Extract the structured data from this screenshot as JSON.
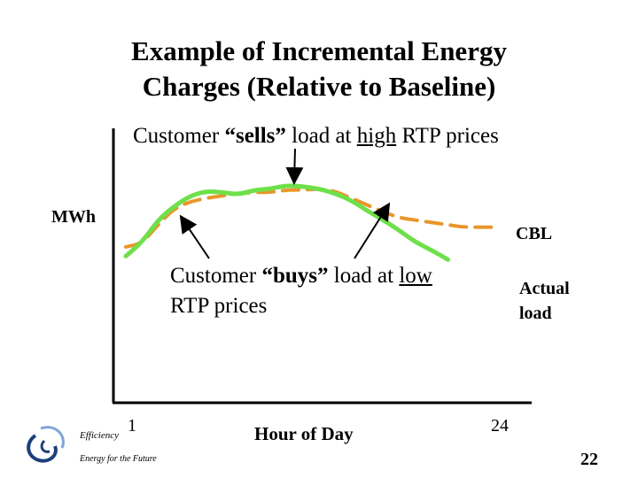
{
  "slide": {
    "title_line1": "Example of Incremental Energy",
    "title_line2": "Charges (Relative to Baseline)",
    "page_number": "22",
    "logo": {
      "name": "Efficiency",
      "tagline": "Energy for the Future"
    }
  },
  "annotations": {
    "sells": {
      "pre": "Customer ",
      "bold": "“sells”",
      "mid": " load at ",
      "underline": "high",
      "post": " RTP prices"
    },
    "buys": {
      "pre": "Customer ",
      "bold": "“buys”",
      "mid": " load at ",
      "underline": "low",
      "line2": "RTP prices"
    }
  },
  "chart_data": {
    "type": "line",
    "title": "Example of Incremental Energy Charges (Relative to Baseline)",
    "xlabel": "Hour of Day",
    "ylabel": "MWh",
    "x_ticks": [
      "1",
      "24"
    ],
    "xlim": [
      1,
      24
    ],
    "grid": false,
    "series": [
      {
        "name": "CBL",
        "style": "dashed",
        "color": "#e8962a",
        "x": [
          1,
          2,
          3,
          4,
          5,
          6,
          7,
          8,
          9,
          10,
          11,
          12,
          13,
          14,
          15,
          16,
          17,
          18,
          19,
          20,
          21,
          22,
          23,
          24
        ],
        "y": [
          0.39,
          0.42,
          0.58,
          0.72,
          0.78,
          0.81,
          0.83,
          0.85,
          0.86,
          0.86,
          0.88,
          0.88,
          0.89,
          0.87,
          0.81,
          0.75,
          0.69,
          0.64,
          0.62,
          0.6,
          0.58,
          0.56,
          0.56,
          0.56
        ]
      },
      {
        "name": "Actual load",
        "style": "solid",
        "color": "#6ee04a",
        "x": [
          1,
          2,
          3,
          4,
          5,
          6,
          7,
          8,
          9,
          10,
          11,
          12,
          13,
          14,
          15,
          16,
          17,
          18,
          19,
          20,
          21
        ],
        "y": [
          0.31,
          0.43,
          0.62,
          0.74,
          0.83,
          0.87,
          0.86,
          0.84,
          0.88,
          0.89,
          0.92,
          0.91,
          0.89,
          0.85,
          0.79,
          0.7,
          0.62,
          0.53,
          0.43,
          0.36,
          0.28
        ]
      }
    ],
    "series_labels": {
      "cbl": "CBL",
      "actual_line1": "Actual",
      "actual_line2": "load"
    }
  }
}
